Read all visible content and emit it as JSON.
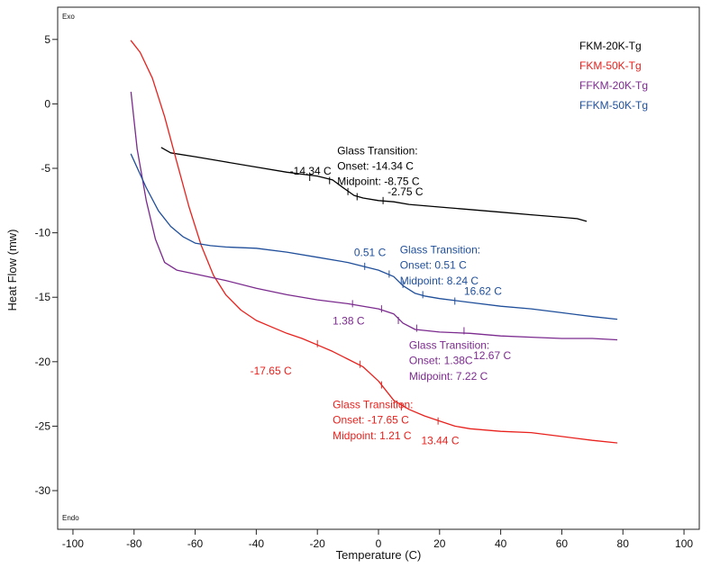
{
  "chart_data": {
    "type": "line",
    "title": "",
    "xlabel": "Temperature (C)",
    "ylabel": "Heat Flow (mw)",
    "xlim": [
      -105,
      105
    ],
    "ylim": [
      -33,
      7.5
    ],
    "x_ticks": [
      -100,
      -80,
      -60,
      -40,
      -20,
      0,
      20,
      40,
      60,
      80,
      100
    ],
    "y_ticks": [
      5,
      0,
      -5,
      -10,
      -15,
      -20,
      -25,
      -30
    ],
    "grid": false,
    "corner_labels": {
      "top": "Exo",
      "bottom": "Endo"
    },
    "legend": {
      "position": "top-right"
    },
    "series": [
      {
        "name": "FKM-20K-Tg",
        "color": "#000000",
        "points": [
          [
            -71,
            -3.4
          ],
          [
            -68,
            -3.8
          ],
          [
            -60,
            -4.1
          ],
          [
            -50,
            -4.5
          ],
          [
            -40,
            -4.9
          ],
          [
            -30,
            -5.3
          ],
          [
            -20,
            -5.6
          ],
          [
            -15,
            -5.9
          ],
          [
            -11,
            -6.6
          ],
          [
            -8,
            -7.1
          ],
          [
            -5,
            -7.3
          ],
          [
            0,
            -7.5
          ],
          [
            5,
            -7.6
          ],
          [
            10,
            -7.8
          ],
          [
            20,
            -8.0
          ],
          [
            30,
            -8.2
          ],
          [
            40,
            -8.4
          ],
          [
            50,
            -8.6
          ],
          [
            60,
            -8.8
          ],
          [
            65,
            -8.9
          ],
          [
            68,
            -9.1
          ]
        ],
        "ticks": [
          [
            -22.5,
            -5.7
          ],
          [
            -16,
            -5.95
          ],
          [
            -10,
            -6.8
          ],
          [
            -7,
            -7.2
          ],
          [
            1.5,
            -7.5
          ]
        ]
      },
      {
        "name": "FKM-50K-Tg",
        "color": "#e8211d",
        "points": [
          [
            -81,
            4.9
          ],
          [
            -78,
            4.0
          ],
          [
            -74,
            2.0
          ],
          [
            -70,
            -1.0
          ],
          [
            -66,
            -4.5
          ],
          [
            -62,
            -8.0
          ],
          [
            -58,
            -11.0
          ],
          [
            -54,
            -13.3
          ],
          [
            -50,
            -14.8
          ],
          [
            -45,
            -16.0
          ],
          [
            -40,
            -16.8
          ],
          [
            -35,
            -17.3
          ],
          [
            -30,
            -17.8
          ],
          [
            -25,
            -18.2
          ],
          [
            -20,
            -18.7
          ],
          [
            -15,
            -19.2
          ],
          [
            -10,
            -19.8
          ],
          [
            -5,
            -20.4
          ],
          [
            0,
            -21.5
          ],
          [
            5,
            -23.0
          ],
          [
            10,
            -23.7
          ],
          [
            15,
            -24.2
          ],
          [
            20,
            -24.6
          ],
          [
            25,
            -25.0
          ],
          [
            30,
            -25.2
          ],
          [
            40,
            -25.4
          ],
          [
            50,
            -25.5
          ],
          [
            60,
            -25.8
          ],
          [
            70,
            -26.1
          ],
          [
            78,
            -26.3
          ]
        ],
        "ticks": [
          [
            -20,
            -18.6
          ],
          [
            -6,
            -20.2
          ],
          [
            1,
            -21.8
          ],
          [
            7.5,
            -23.5
          ],
          [
            19.5,
            -24.6
          ]
        ]
      },
      {
        "name": "FFKM-20K-Tg",
        "color": "#7b2a8e",
        "points": [
          [
            -81,
            0.9
          ],
          [
            -79,
            -3.5
          ],
          [
            -76,
            -7.5
          ],
          [
            -73,
            -10.5
          ],
          [
            -70,
            -12.3
          ],
          [
            -66,
            -12.9
          ],
          [
            -60,
            -13.2
          ],
          [
            -50,
            -13.7
          ],
          [
            -40,
            -14.3
          ],
          [
            -30,
            -14.8
          ],
          [
            -20,
            -15.2
          ],
          [
            -10,
            -15.5
          ],
          [
            0,
            -15.9
          ],
          [
            5,
            -16.3
          ],
          [
            8,
            -17.0
          ],
          [
            12,
            -17.5
          ],
          [
            20,
            -17.7
          ],
          [
            30,
            -17.8
          ],
          [
            40,
            -18.0
          ],
          [
            50,
            -18.1
          ],
          [
            60,
            -18.2
          ],
          [
            70,
            -18.2
          ],
          [
            78,
            -18.3
          ]
        ],
        "ticks": [
          [
            -8.5,
            -15.5
          ],
          [
            1,
            -15.9
          ],
          [
            6.5,
            -16.8
          ],
          [
            12.5,
            -17.4
          ],
          [
            28,
            -17.6
          ]
        ]
      },
      {
        "name": "FFKM-50K-Tg",
        "color": "#1f4e9a",
        "points": [
          [
            -81,
            -3.9
          ],
          [
            -76,
            -6.5
          ],
          [
            -72,
            -8.3
          ],
          [
            -68,
            -9.5
          ],
          [
            -64,
            -10.3
          ],
          [
            -60,
            -10.8
          ],
          [
            -55,
            -11.0
          ],
          [
            -50,
            -11.1
          ],
          [
            -40,
            -11.2
          ],
          [
            -30,
            -11.5
          ],
          [
            -20,
            -11.9
          ],
          [
            -10,
            -12.3
          ],
          [
            -5,
            -12.6
          ],
          [
            0,
            -12.9
          ],
          [
            5,
            -13.4
          ],
          [
            8,
            -14.1
          ],
          [
            12,
            -14.7
          ],
          [
            15,
            -14.9
          ],
          [
            20,
            -15.1
          ],
          [
            30,
            -15.4
          ],
          [
            40,
            -15.7
          ],
          [
            50,
            -15.9
          ],
          [
            60,
            -16.2
          ],
          [
            70,
            -16.5
          ],
          [
            78,
            -16.7
          ]
        ],
        "ticks": [
          [
            -4.5,
            -12.6
          ],
          [
            3.5,
            -13.2
          ],
          [
            8,
            -14.0
          ],
          [
            14.5,
            -14.8
          ],
          [
            25,
            -15.3
          ]
        ]
      }
    ],
    "annotations": [
      {
        "text": "-14.34 C",
        "x": -29,
        "y": -5.5,
        "color": "#000000"
      },
      {
        "text": "Glass Transition:",
        "x": -13.5,
        "y": -3.9,
        "color": "#000000"
      },
      {
        "text": "Onset: -14.34 C",
        "x": -13.5,
        "y": -5.1,
        "color": "#000000"
      },
      {
        "text": "Midpoint: -8.75 C",
        "x": -13.5,
        "y": -6.3,
        "color": "#000000"
      },
      {
        "text": "-2.75 C",
        "x": 3,
        "y": -7.1,
        "color": "#000000"
      },
      {
        "text": "0.51 C",
        "x": -8,
        "y": -11.8,
        "color": "#1f4e9a"
      },
      {
        "text": "Glass Transition:",
        "x": 7,
        "y": -11.6,
        "color": "#1f4e9a"
      },
      {
        "text": "Onset: 0.51 C",
        "x": 7,
        "y": -12.8,
        "color": "#1f4e9a"
      },
      {
        "text": "Midpoint: 8.24 C",
        "x": 7,
        "y": -14.0,
        "color": "#1f4e9a"
      },
      {
        "text": "16.62 C",
        "x": 28,
        "y": -14.8,
        "color": "#1f4e9a"
      },
      {
        "text": "1.38 C",
        "x": -15,
        "y": -17.1,
        "color": "#7b2a8e"
      },
      {
        "text": "Glass Transition:",
        "x": 10,
        "y": -19.0,
        "color": "#7b2a8e"
      },
      {
        "text": "Onset: 1.38C",
        "x": 10,
        "y": -20.2,
        "color": "#7b2a8e"
      },
      {
        "text": "Midpoint: 7.22 C",
        "x": 10,
        "y": -21.4,
        "color": "#7b2a8e"
      },
      {
        "text": "12.67 C",
        "x": 31,
        "y": -19.8,
        "color": "#7b2a8e"
      },
      {
        "text": "-17.65 C",
        "x": -42,
        "y": -21.0,
        "color": "#e8211d"
      },
      {
        "text": "Glass Transition:",
        "x": -15,
        "y": -23.6,
        "color": "#e8211d"
      },
      {
        "text": "Onset: -17.65 C",
        "x": -15,
        "y": -24.8,
        "color": "#e8211d"
      },
      {
        "text": "Midpoint: 1.21 C",
        "x": -15,
        "y": -26.0,
        "color": "#e8211d"
      },
      {
        "text": "13.44 C",
        "x": 14,
        "y": -26.4,
        "color": "#e8211d"
      }
    ]
  }
}
